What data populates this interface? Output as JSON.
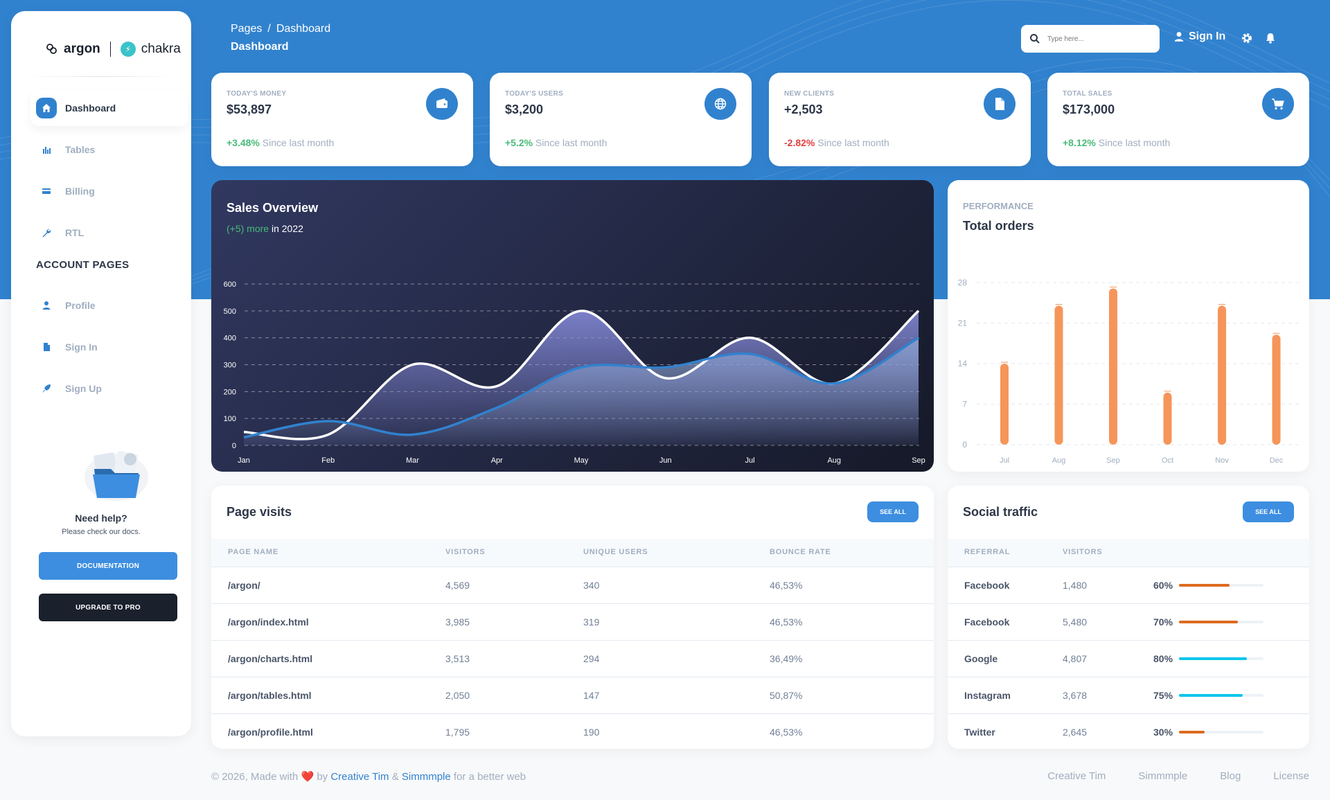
{
  "brand": {
    "name": "argon",
    "secondary": "chakra"
  },
  "sidebar": {
    "items": [
      {
        "label": "Dashboard",
        "icon": "home-icon",
        "active": true
      },
      {
        "label": "Tables",
        "icon": "stats-bars-icon"
      },
      {
        "label": "Billing",
        "icon": "credit-card-icon"
      },
      {
        "label": "RTL",
        "icon": "wrench-icon"
      }
    ],
    "section_title": "ACCOUNT PAGES",
    "account_items": [
      {
        "label": "Profile",
        "icon": "person-icon"
      },
      {
        "label": "Sign In",
        "icon": "document-icon"
      },
      {
        "label": "Sign Up",
        "icon": "rocket-icon"
      }
    ],
    "help": {
      "title": "Need help?",
      "subtitle": "Please check our docs.",
      "docs_button": "DOCUMENTATION",
      "pro_button": "UPGRADE TO PRO"
    }
  },
  "header": {
    "breadcrumb": [
      "Pages",
      "/",
      "Dashboard"
    ],
    "title": "Dashboard",
    "search_placeholder": "Type here...",
    "sign_in": "Sign In"
  },
  "stats": [
    {
      "label": "TODAY'S MONEY",
      "value": "$53,897",
      "change": "+3.48%",
      "suffix": "Since last month",
      "positive": true,
      "icon": "wallet-icon"
    },
    {
      "label": "TODAY'S USERS",
      "value": "$3,200",
      "change": "+5.2%",
      "suffix": "Since last month",
      "positive": true,
      "icon": "globe-icon"
    },
    {
      "label": "NEW CLIENTS",
      "value": "+2,503",
      "change": "-2.82%",
      "suffix": "Since last month",
      "positive": false,
      "icon": "document-icon"
    },
    {
      "label": "TOTAL SALES",
      "value": "$173,000",
      "change": "+8.12%",
      "suffix": "Since last month",
      "positive": true,
      "icon": "cart-icon"
    }
  ],
  "sales_overview": {
    "title": "Sales Overview",
    "sub_highlight": "(+5) more",
    "sub_rest": " in 2022"
  },
  "performance": {
    "label": "PERFORMANCE",
    "title": "Total orders"
  },
  "chart_data": [
    {
      "type": "area",
      "title": "Sales Overview",
      "categories": [
        "Jan",
        "Feb",
        "Mar",
        "Apr",
        "May",
        "Jun",
        "Jul",
        "Aug",
        "Sep"
      ],
      "ylim": [
        0,
        600
      ],
      "yticks": [
        0,
        100,
        200,
        300,
        400,
        500,
        600
      ],
      "grid": true,
      "series": [
        {
          "values": [
            50,
            40,
            300,
            220,
            500,
            250,
            400,
            230,
            500
          ]
        },
        {
          "values": [
            30,
            90,
            40,
            140,
            290,
            290,
            340,
            230,
            400
          ]
        }
      ]
    },
    {
      "type": "bar",
      "title": "Total orders",
      "categories": [
        "Jul",
        "Aug",
        "Sep",
        "Oct",
        "Nov",
        "Dec"
      ],
      "values": [
        14,
        24,
        27,
        9,
        24,
        19
      ],
      "ylim": [
        0,
        28
      ],
      "yticks": [
        0,
        7,
        14,
        21,
        28
      ],
      "grid": true
    }
  ],
  "page_visits": {
    "title": "Page visits",
    "see_all": "SEE ALL",
    "columns": [
      "PAGE NAME",
      "VISITORS",
      "UNIQUE USERS",
      "BOUNCE RATE"
    ],
    "rows": [
      [
        "/argon/",
        "4,569",
        "340",
        "46,53%"
      ],
      [
        "/argon/index.html",
        "3,985",
        "319",
        "46,53%"
      ],
      [
        "/argon/charts.html",
        "3,513",
        "294",
        "36,49%"
      ],
      [
        "/argon/tables.html",
        "2,050",
        "147",
        "50,87%"
      ],
      [
        "/argon/profile.html",
        "1,795",
        "190",
        "46,53%"
      ]
    ]
  },
  "social_traffic": {
    "title": "Social traffic",
    "see_all": "SEE ALL",
    "columns": [
      "REFERRAL",
      "VISITORS"
    ],
    "rows": [
      {
        "referral": "Facebook",
        "visitors": "1,480",
        "percent": "60%",
        "value": 0.6,
        "color": "#dd6b20"
      },
      {
        "referral": "Facebook",
        "visitors": "5,480",
        "percent": "70%",
        "value": 0.7,
        "color": "#dd6b20"
      },
      {
        "referral": "Google",
        "visitors": "4,807",
        "percent": "80%",
        "value": 0.8,
        "color": "#0bc5ea"
      },
      {
        "referral": "Instagram",
        "visitors": "3,678",
        "percent": "75%",
        "value": 0.75,
        "color": "#0bc5ea"
      },
      {
        "referral": "Twitter",
        "visitors": "2,645",
        "percent": "30%",
        "value": 0.3,
        "color": "#dd6b20"
      }
    ]
  },
  "footer": {
    "copyright": "© 2026, Made with",
    "by": "by",
    "author1": "Creative Tim",
    "amp": "&",
    "author2": "Simmmple",
    "tail": "for a better web",
    "links": [
      "Creative Tim",
      "Simmmple",
      "Blog",
      "License"
    ]
  },
  "colors": {
    "primary": "#3182ce",
    "positive": "#48bb78",
    "negative": "#e53e3e",
    "bar": "#f6955a"
  }
}
